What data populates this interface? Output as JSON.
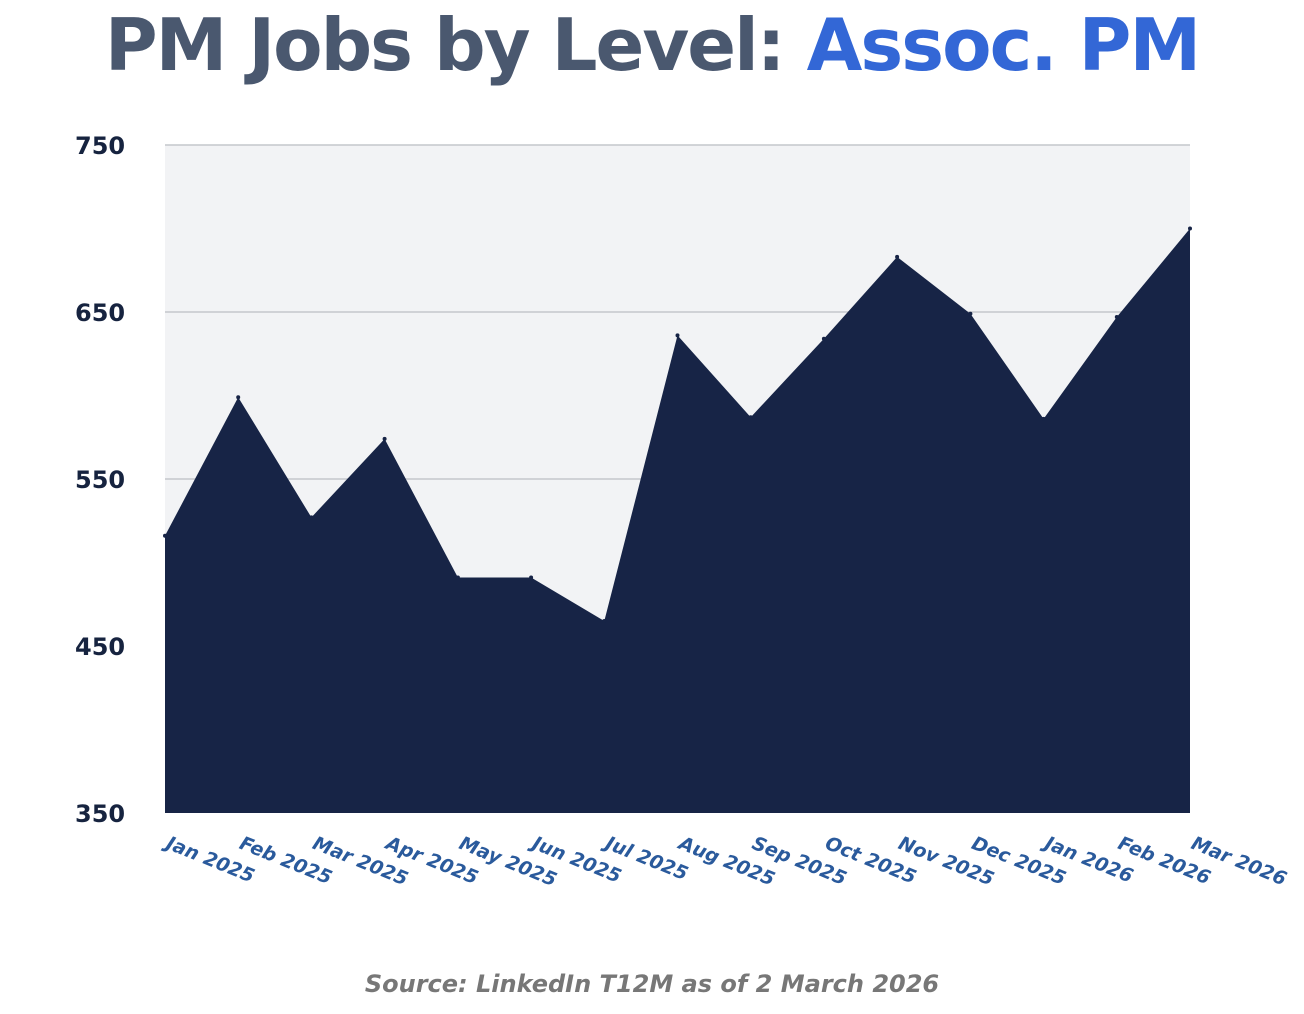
{
  "title": {
    "prefix": "PM Jobs by Level:",
    "highlight": "Assoc. PM"
  },
  "source": "Source: LinkedIn T12M as of 2 March 2026",
  "colors": {
    "area": "#172446",
    "plot_background": "#f2f3f5",
    "gridline": "#c4c7cc",
    "title_dark": "#4a586f",
    "title_accent": "#3367d6",
    "y_tick": "#16233f",
    "x_tick": "#2a5a9c",
    "source": "#777777"
  },
  "chart_data": {
    "type": "area",
    "categories": [
      "Jan 2025",
      "Feb 2025",
      "Mar 2025",
      "Apr 2025",
      "May 2025",
      "Jun 2025",
      "Jul 2025",
      "Aug 2025",
      "Sep 2025",
      "Oct 2025",
      "Nov 2025",
      "Dec 2025",
      "Jan 2026",
      "Feb 2026",
      "Mar 2026"
    ],
    "values": [
      516,
      599,
      527,
      574,
      491,
      491,
      465,
      636,
      587,
      634,
      683,
      649,
      586,
      647,
      700
    ],
    "ylim": [
      350,
      750
    ],
    "yticks": [
      750,
      650,
      550,
      450,
      350
    ],
    "grid": true
  }
}
